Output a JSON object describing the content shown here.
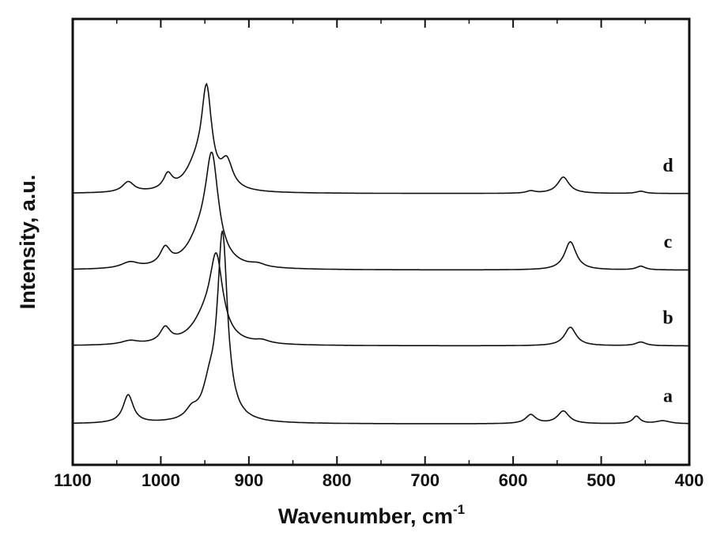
{
  "chart_data": {
    "type": "line",
    "title": "",
    "xlabel": "Wavenumber, cm",
    "xlabel_superscript": "-1",
    "ylabel": "Intensity, a.u.",
    "xlim": [
      1100,
      400
    ],
    "ylim": [
      0,
      6
    ],
    "xticks": [
      1100,
      1000,
      900,
      800,
      700,
      600,
      500,
      400
    ],
    "xtick_labels": [
      "1100",
      "1000",
      "900",
      "800",
      "700",
      "600",
      "500",
      "400"
    ],
    "minor_xticks": [
      1050,
      950,
      850,
      750,
      650,
      550,
      450
    ],
    "grid": false,
    "series_model": "baseline + sum of Lorentzian peaks [center cm-1, height a.u., half-width cm-1]",
    "series": [
      {
        "name": "a",
        "baseline": 0.55,
        "peaks": [
          [
            1037,
            0.38,
            7
          ],
          [
            965,
            0.12,
            8
          ],
          [
            945,
            0.35,
            9
          ],
          [
            930,
            2.5,
            7
          ],
          [
            580,
            0.12,
            7
          ],
          [
            543,
            0.17,
            8
          ],
          [
            460,
            0.1,
            5
          ],
          [
            430,
            0.04,
            10
          ]
        ]
      },
      {
        "name": "b",
        "baseline": 1.6,
        "peaks": [
          [
            1035,
            0.05,
            12
          ],
          [
            995,
            0.2,
            7
          ],
          [
            950,
            0.3,
            18
          ],
          [
            937,
            1.05,
            9
          ],
          [
            885,
            0.04,
            10
          ],
          [
            535,
            0.25,
            8
          ],
          [
            455,
            0.05,
            7
          ]
        ]
      },
      {
        "name": "c",
        "baseline": 2.62,
        "peaks": [
          [
            1035,
            0.08,
            12
          ],
          [
            995,
            0.23,
            7
          ],
          [
            955,
            0.35,
            18
          ],
          [
            942,
            1.35,
            9
          ],
          [
            890,
            0.04,
            10
          ],
          [
            535,
            0.38,
            8
          ],
          [
            455,
            0.05,
            6
          ]
        ]
      },
      {
        "name": "d",
        "baseline": 3.65,
        "peaks": [
          [
            1037,
            0.14,
            8
          ],
          [
            992,
            0.2,
            6
          ],
          [
            960,
            0.3,
            15
          ],
          [
            948,
            1.25,
            7
          ],
          [
            925,
            0.35,
            8
          ],
          [
            580,
            0.03,
            6
          ],
          [
            543,
            0.22,
            8
          ],
          [
            455,
            0.03,
            6
          ]
        ]
      }
    ]
  }
}
